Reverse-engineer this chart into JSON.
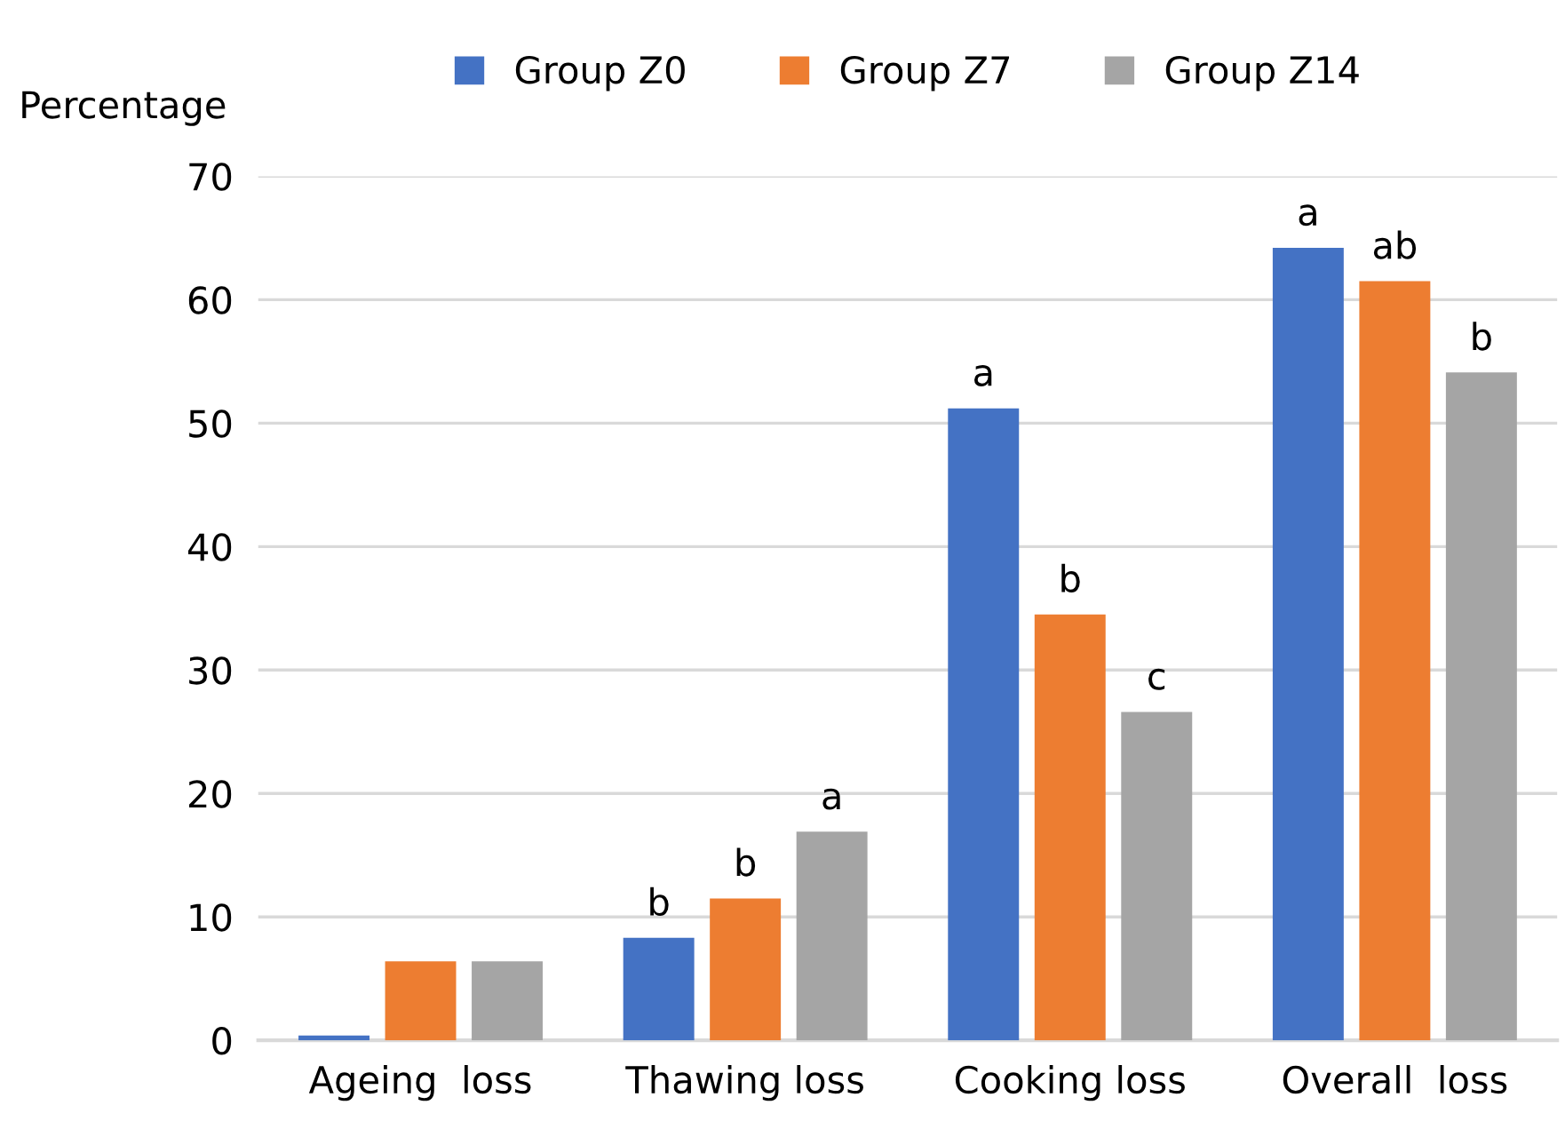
{
  "chart_data": {
    "type": "bar",
    "ylabel": "Percentage",
    "categories": [
      "Ageing  loss",
      "Thawing loss",
      "Cooking loss",
      "Overall  loss"
    ],
    "series": [
      {
        "name": "Group Z0",
        "color": "#4472c4",
        "values": [
          0.4,
          8.3,
          51.2,
          64.2
        ],
        "value_labels": [
          null,
          "b",
          "a",
          "a"
        ]
      },
      {
        "name": "Group Z7",
        "color": "#ed7d31",
        "values": [
          6.4,
          11.5,
          34.5,
          61.5
        ],
        "value_labels": [
          null,
          "b",
          "b",
          "ab"
        ]
      },
      {
        "name": "Group Z14",
        "color": "#a5a5a5",
        "values": [
          6.4,
          16.9,
          26.6,
          54.1
        ],
        "value_labels": [
          null,
          "a",
          "c",
          "b"
        ]
      }
    ],
    "ylim": [
      0,
      70
    ],
    "yticks": [
      0,
      10,
      20,
      30,
      40,
      50,
      60,
      70
    ],
    "grid": "y",
    "legend": "top"
  }
}
